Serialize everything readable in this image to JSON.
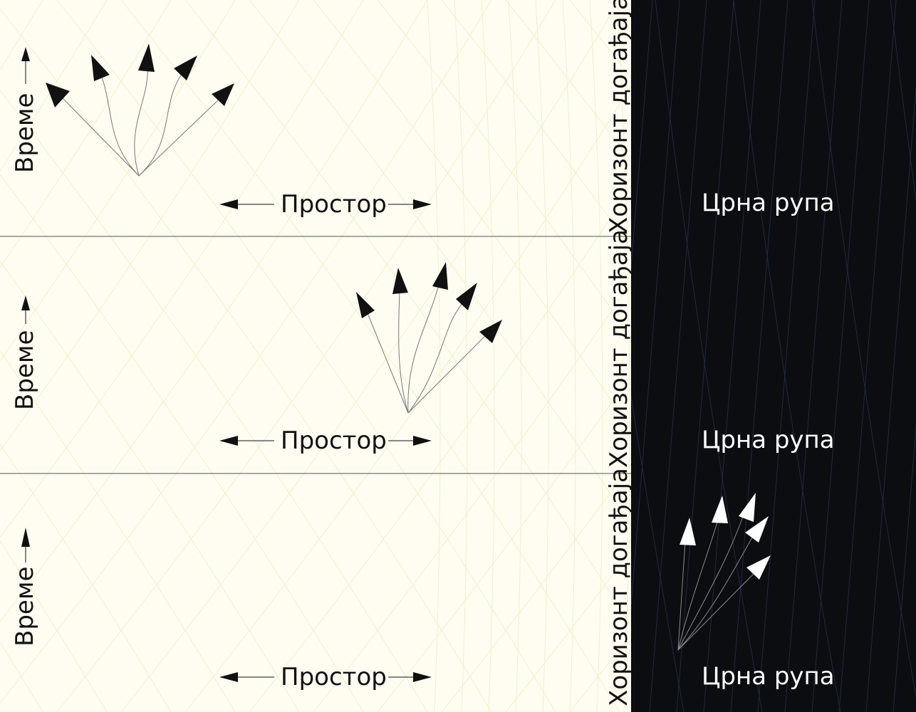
{
  "labels": {
    "time": "Време",
    "space": "Простор",
    "horizon": "Хоризонт догађаја",
    "black_hole": "Црна рупа"
  },
  "colors": {
    "background": "#fffdf2",
    "grid_light": "#f2f0c8",
    "black_hole": "#0b0d10",
    "grid_dark": "#1f2a45",
    "divider": "#555555",
    "ink": "#111111",
    "white_ink": "#ffffff"
  },
  "panels": [
    {
      "id": "top",
      "cones_color": "dark"
    },
    {
      "id": "middle",
      "cones_color": "dark"
    },
    {
      "id": "bottom",
      "cones_color": "light"
    }
  ]
}
